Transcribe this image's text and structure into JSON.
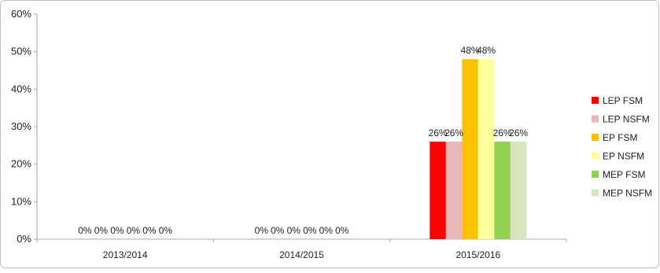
{
  "chart_data": {
    "type": "bar",
    "categories": [
      "2013/2014",
      "2014/2015",
      "2015/2016"
    ],
    "series": [
      {
        "name": "LEP FSM",
        "color": "#ff0000",
        "values": [
          0,
          0,
          26
        ],
        "labels": [
          "0%",
          "0%",
          "26%"
        ]
      },
      {
        "name": "LEP NSFM",
        "color": "#e6b8b7",
        "values": [
          0,
          0,
          26
        ],
        "labels": [
          "0%",
          "0%",
          "26%"
        ]
      },
      {
        "name": "EP FSM",
        "color": "#ffc000",
        "values": [
          0,
          0,
          48
        ],
        "labels": [
          "0%",
          "0%",
          "48%"
        ]
      },
      {
        "name": "EP NSFM",
        "color": "#ffff99",
        "values": [
          0,
          0,
          48
        ],
        "labels": [
          "0%",
          "0%",
          "48%"
        ]
      },
      {
        "name": "MEP FSM",
        "color": "#92d050",
        "values": [
          0,
          0,
          26
        ],
        "labels": [
          "0%",
          "0%",
          "26%"
        ]
      },
      {
        "name": "MEP NSFM",
        "color": "#d8e4bc",
        "values": [
          0,
          0,
          26
        ],
        "labels": [
          "0%",
          "0%",
          "26%"
        ]
      }
    ],
    "y_ticks": [
      "0%",
      "10%",
      "20%",
      "30%",
      "40%",
      "50%",
      "60%"
    ],
    "ylim": [
      0,
      60
    ],
    "title": "",
    "xlabel": "",
    "ylabel": "",
    "grid": false,
    "legend": "right"
  }
}
